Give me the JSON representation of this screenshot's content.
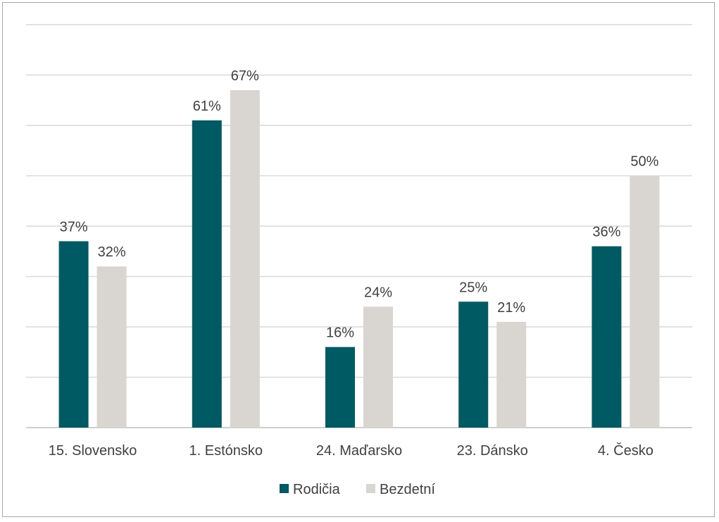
{
  "chart_data": {
    "type": "bar",
    "categories": [
      "15. Slovensko",
      "1. Estónsko",
      "24. Maďarsko",
      "23. Dánsko",
      "4. Česko"
    ],
    "series": [
      {
        "name": "Rodičia",
        "values": [
          37,
          61,
          16,
          25,
          36
        ],
        "labels": [
          "37%",
          "61%",
          "16%",
          "25%",
          "36%"
        ],
        "color": "#005a64"
      },
      {
        "name": "Bezdetní",
        "values": [
          32,
          67,
          24,
          21,
          50
        ],
        "labels": [
          "32%",
          "67%",
          "24%",
          "21%",
          "50%"
        ],
        "color": "#d9d6d1"
      }
    ],
    "ylim": [
      0,
      80
    ],
    "grid": true,
    "legend_position": "bottom"
  }
}
